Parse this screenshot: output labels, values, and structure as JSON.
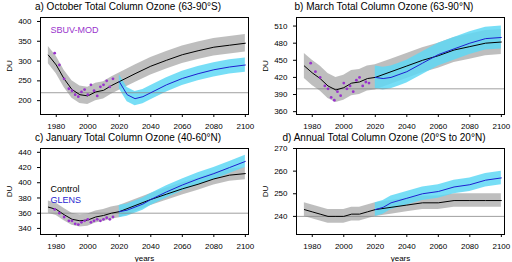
{
  "chart_data": [
    {
      "type": "line",
      "title": "a) October Total Column Ozone (63-90°S)",
      "y_label": "DU",
      "xlim": [
        1970,
        2102
      ],
      "xticks": [
        1980,
        2000,
        2020,
        2040,
        2060,
        2080,
        2100
      ],
      "ylim": [
        165,
        410
      ],
      "yticks": [
        200,
        250,
        300,
        350,
        400
      ],
      "reference_line": 220,
      "legend": "top-left",
      "legend_entries": [
        "SBUV-MOD"
      ],
      "series": [
        {
          "name": "Control",
          "type": "line",
          "colors": [
            "#000000",
            "#b3b3b3"
          ],
          "x": [
            1975,
            1980,
            1985,
            1990,
            1995,
            2000,
            2005,
            2010,
            2015,
            2020,
            2030,
            2040,
            2050,
            2060,
            2070,
            2080,
            2090,
            2100
          ],
          "values": [
            315,
            290,
            255,
            228,
            215,
            212,
            222,
            226,
            238,
            248,
            268,
            287,
            302,
            316,
            326,
            335,
            340,
            345
          ],
          "lower": [
            293,
            268,
            233,
            206,
            193,
            190,
            200,
            204,
            216,
            226,
            246,
            265,
            280,
            294,
            304,
            313,
            318,
            323
          ],
          "upper": [
            337,
            312,
            277,
            250,
            237,
            234,
            244,
            248,
            260,
            270,
            290,
            309,
            324,
            338,
            348,
            357,
            362,
            367
          ]
        },
        {
          "name": "GLENS",
          "type": "line",
          "colors": [
            "#1f1fd0",
            "#5fd8f5"
          ],
          "x": [
            2020,
            2025,
            2030,
            2035,
            2040,
            2050,
            2060,
            2070,
            2080,
            2090,
            2100
          ],
          "values": [
            248,
            215,
            205,
            210,
            220,
            240,
            256,
            268,
            278,
            285,
            290
          ],
          "lower": [
            230,
            197,
            187,
            192,
            202,
            222,
            238,
            250,
            260,
            267,
            272
          ],
          "upper": [
            266,
            233,
            223,
            228,
            238,
            258,
            274,
            286,
            296,
            303,
            308
          ]
        },
        {
          "name": "SBUV-MOD",
          "type": "scatter",
          "marker": "dot",
          "color": "#9933cc",
          "x": [
            1979,
            1982,
            1985,
            1988,
            1990,
            1992,
            1994,
            1996,
            1998,
            2000,
            2002,
            2004,
            2006,
            2008,
            2010,
            2012,
            2014,
            2016
          ],
          "values": [
            320,
            290,
            255,
            230,
            225,
            215,
            210,
            222,
            228,
            215,
            240,
            225,
            212,
            235,
            240,
            250,
            235,
            255
          ]
        }
      ]
    },
    {
      "type": "line",
      "title": "b) March Total Column Ozone (63-90°N)",
      "y_label": "DU",
      "xlim": [
        1970,
        2102
      ],
      "xticks": [
        1980,
        2000,
        2020,
        2040,
        2060,
        2080,
        2100
      ],
      "ylim": [
        355,
        525
      ],
      "yticks": [
        360,
        390,
        420,
        450,
        480,
        510
      ],
      "reference_line": 400,
      "series": [
        {
          "name": "Control",
          "type": "line",
          "colors": [
            "#000000",
            "#b3b3b3"
          ],
          "x": [
            1975,
            1980,
            1985,
            1990,
            1995,
            2000,
            2005,
            2010,
            2015,
            2020,
            2030,
            2040,
            2050,
            2060,
            2070,
            2080,
            2090,
            2100
          ],
          "values": [
            440,
            428,
            418,
            405,
            398,
            402,
            410,
            412,
            418,
            420,
            430,
            440,
            450,
            458,
            468,
            474,
            480,
            482
          ],
          "lower": [
            418,
            406,
            396,
            383,
            376,
            380,
            388,
            390,
            396,
            398,
            408,
            418,
            428,
            436,
            446,
            452,
            458,
            460
          ],
          "upper": [
            462,
            450,
            440,
            427,
            420,
            424,
            432,
            434,
            440,
            442,
            452,
            462,
            472,
            480,
            490,
            496,
            502,
            504
          ]
        },
        {
          "name": "GLENS",
          "type": "line",
          "colors": [
            "#1f1fd0",
            "#5fd8f5"
          ],
          "x": [
            2020,
            2025,
            2030,
            2035,
            2040,
            2050,
            2060,
            2070,
            2080,
            2090,
            2100
          ],
          "values": [
            420,
            418,
            420,
            425,
            430,
            445,
            460,
            470,
            480,
            488,
            490
          ],
          "lower": [
            400,
            398,
            400,
            405,
            410,
            425,
            440,
            450,
            460,
            468,
            470
          ],
          "upper": [
            440,
            438,
            440,
            445,
            450,
            465,
            480,
            490,
            500,
            508,
            510
          ]
        },
        {
          "name": "SBUV-MOD",
          "type": "scatter",
          "marker": "dot",
          "color": "#9933cc",
          "x": [
            1979,
            1982,
            1985,
            1988,
            1990,
            1992,
            1994,
            1996,
            1998,
            2000,
            2002,
            2004,
            2006,
            2008,
            2010,
            2012,
            2014,
            2016
          ],
          "values": [
            445,
            430,
            420,
            405,
            400,
            385,
            380,
            395,
            388,
            410,
            400,
            405,
            395,
            415,
            420,
            405,
            412,
            410
          ]
        }
      ]
    },
    {
      "type": "line",
      "title": "c) January Total Column Ozone (40-60°N)",
      "y_label": "DU",
      "x_label": "years",
      "xlim": [
        1970,
        2102
      ],
      "xticks": [
        1980,
        2000,
        2020,
        2040,
        2060,
        2080,
        2100
      ],
      "ylim": [
        332,
        445
      ],
      "yticks": [
        340,
        360,
        380,
        400,
        420,
        440
      ],
      "reference_line": 360,
      "legend": "left",
      "legend_entries": [
        "Control",
        "GLENS"
      ],
      "series": [
        {
          "name": "Control",
          "type": "line",
          "colors": [
            "#000000",
            "#b3b3b3"
          ],
          "x": [
            1975,
            1980,
            1985,
            1990,
            1995,
            2000,
            2005,
            2010,
            2015,
            2020,
            2030,
            2040,
            2050,
            2060,
            2070,
            2080,
            2090,
            2100
          ],
          "values": [
            368,
            365,
            358,
            352,
            350,
            351,
            355,
            357,
            360,
            362,
            370,
            378,
            385,
            392,
            398,
            405,
            410,
            412
          ],
          "lower": [
            360,
            357,
            350,
            344,
            342,
            343,
            347,
            349,
            352,
            354,
            362,
            370,
            377,
            384,
            390,
            397,
            402,
            404
          ],
          "upper": [
            376,
            373,
            366,
            360,
            358,
            359,
            363,
            365,
            368,
            370,
            378,
            386,
            393,
            400,
            406,
            413,
            418,
            420
          ]
        },
        {
          "name": "GLENS",
          "type": "line",
          "colors": [
            "#1f1fd0",
            "#5fd8f5"
          ],
          "x": [
            2020,
            2025,
            2030,
            2035,
            2040,
            2050,
            2060,
            2070,
            2080,
            2090,
            2100
          ],
          "values": [
            362,
            364,
            368,
            372,
            378,
            388,
            397,
            405,
            412,
            420,
            428
          ],
          "lower": [
            354,
            356,
            360,
            364,
            370,
            380,
            389,
            397,
            404,
            412,
            420
          ],
          "upper": [
            370,
            372,
            376,
            380,
            386,
            396,
            405,
            413,
            420,
            428,
            436
          ]
        },
        {
          "name": "SBUV-MOD",
          "type": "scatter",
          "marker": "dot",
          "color": "#9933cc",
          "x": [
            1979,
            1982,
            1985,
            1988,
            1990,
            1992,
            1994,
            1996,
            1998,
            2000,
            2002,
            2004,
            2006,
            2008,
            2010,
            2012,
            2014,
            2016
          ],
          "values": [
            365,
            360,
            355,
            350,
            350,
            346,
            345,
            348,
            350,
            352,
            348,
            350,
            352,
            350,
            352,
            354,
            352,
            355
          ]
        }
      ]
    },
    {
      "type": "line",
      "title": "d) Annual Total Column Ozone (20°S to 20°N)",
      "y_label": "DU",
      "x_label": "years",
      "xlim": [
        1970,
        2102
      ],
      "xticks": [
        1980,
        2000,
        2020,
        2040,
        2060,
        2080,
        2100
      ],
      "ylim": [
        232,
        270
      ],
      "yticks": [
        240,
        250,
        260,
        270
      ],
      "reference_line": 240,
      "series": [
        {
          "name": "Control",
          "type": "line",
          "colors": [
            "#000000",
            "#b3b3b3"
          ],
          "x": [
            1975,
            1980,
            1985,
            1990,
            1995,
            2000,
            2005,
            2010,
            2015,
            2020,
            2030,
            2040,
            2050,
            2060,
            2070,
            2080,
            2090,
            2100
          ],
          "values": [
            243,
            242,
            241,
            240,
            240,
            240,
            241,
            241,
            242,
            243,
            244,
            245,
            246,
            246,
            247,
            247,
            247,
            247
          ],
          "lower": [
            240,
            239,
            238,
            237,
            237,
            237,
            238,
            238,
            239,
            240,
            241,
            242,
            243,
            243,
            244,
            244,
            244,
            244
          ],
          "upper": [
            246,
            245,
            244,
            243,
            243,
            243,
            244,
            244,
            245,
            246,
            247,
            248,
            249,
            249,
            250,
            250,
            250,
            250
          ]
        },
        {
          "name": "GLENS",
          "type": "line",
          "colors": [
            "#1f1fd0",
            "#5fd8f5"
          ],
          "x": [
            2020,
            2025,
            2030,
            2035,
            2040,
            2050,
            2060,
            2070,
            2080,
            2090,
            2100
          ],
          "values": [
            243,
            244,
            246,
            247,
            248,
            250,
            251,
            253,
            254,
            256,
            257
          ],
          "lower": [
            240,
            241,
            243,
            244,
            245,
            247,
            248,
            250,
            251,
            253,
            254
          ],
          "upper": [
            246,
            247,
            249,
            250,
            251,
            253,
            254,
            256,
            257,
            259,
            260
          ]
        }
      ]
    }
  ]
}
